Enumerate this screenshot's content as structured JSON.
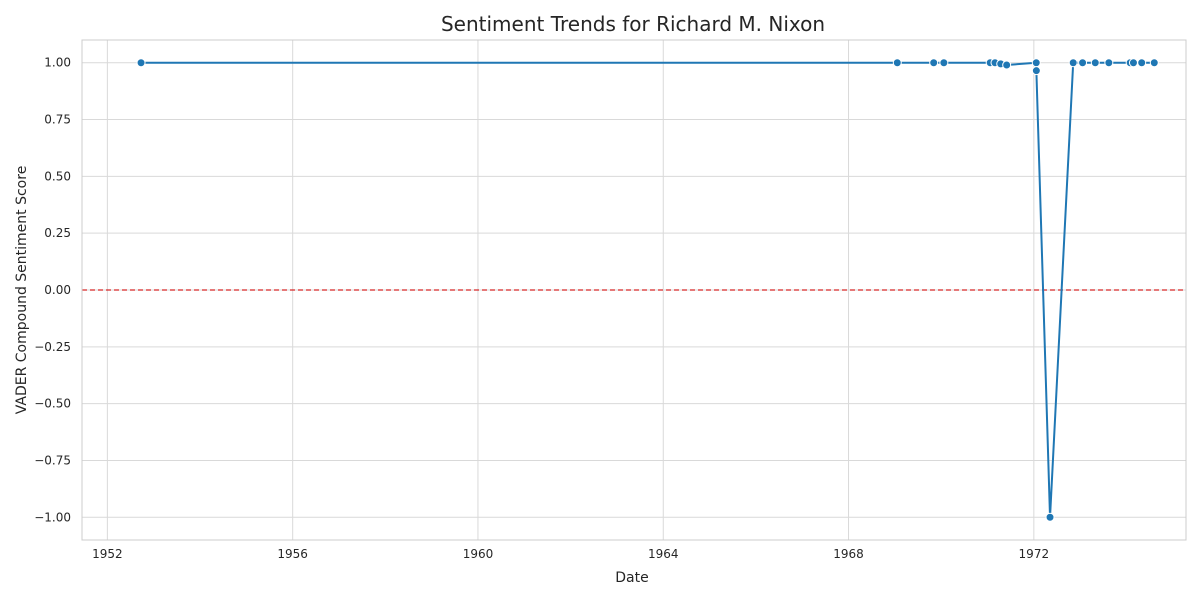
{
  "chart_data": {
    "type": "line",
    "title": "Sentiment Trends for Richard M. Nixon",
    "xlabel": "Date",
    "ylabel": "VADER Compound Sentiment Score",
    "xlim": [
      "1951-06-15",
      "1975-04-15"
    ],
    "ylim": [
      -1.1,
      1.1
    ],
    "grid": true,
    "x_ticks": [
      "1952",
      "1956",
      "1960",
      "1964",
      "1968",
      "1972"
    ],
    "y_ticks": [
      "1.00",
      "0.75",
      "0.50",
      "0.25",
      "0.00",
      "−0.25",
      "−0.50",
      "−0.75",
      "−1.00"
    ],
    "reference_line": {
      "y": 0.0,
      "color": "#d62728",
      "style": "dashed"
    },
    "series": [
      {
        "color": "#1f77b4",
        "points": [
          {
            "x": "1952-09-23",
            "y": 1.0
          },
          {
            "x": "1969-01-20",
            "y": 1.0
          },
          {
            "x": "1969-11-03",
            "y": 1.0
          },
          {
            "x": "1970-01-22",
            "y": 1.0
          },
          {
            "x": "1971-01-22",
            "y": 1.0
          },
          {
            "x": "1971-03-01",
            "y": 1.0
          },
          {
            "x": "1971-04-15",
            "y": 0.995
          },
          {
            "x": "1971-06-01",
            "y": 0.99
          },
          {
            "x": "1972-01-20",
            "y": 1.0
          },
          {
            "x": "1972-01-21",
            "y": 0.965
          },
          {
            "x": "1972-05-08",
            "y": -1.0
          },
          {
            "x": "1972-11-07",
            "y": 1.0
          },
          {
            "x": "1973-01-20",
            "y": 1.0
          },
          {
            "x": "1973-04-30",
            "y": 1.0
          },
          {
            "x": "1973-08-15",
            "y": 1.0
          },
          {
            "x": "1974-01-30",
            "y": 1.0
          },
          {
            "x": "1974-02-25",
            "y": 1.0
          },
          {
            "x": "1974-05-01",
            "y": 1.0
          },
          {
            "x": "1974-08-08",
            "y": 1.0
          }
        ]
      }
    ]
  }
}
